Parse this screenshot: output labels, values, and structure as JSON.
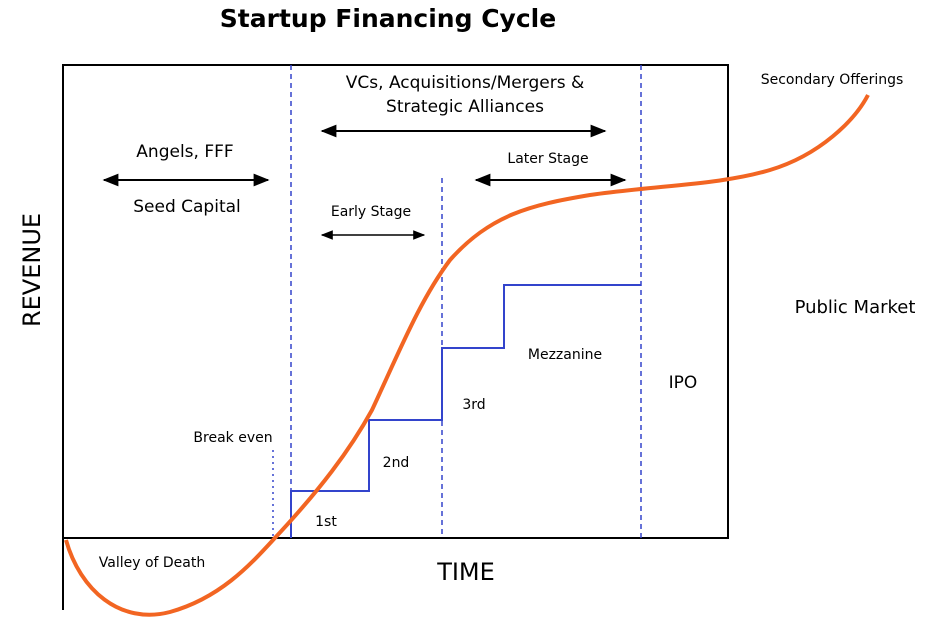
{
  "title": "Startup Financing Cycle",
  "axes": {
    "y_label": "REVENUE",
    "x_label": "TIME"
  },
  "phases": {
    "vc_line1": "VCs, Acquisitions/Mergers &",
    "vc_line2": "Strategic Alliances",
    "angels": "Angels, FFF",
    "seed": "Seed Capital",
    "early": "Early Stage",
    "later": "Later Stage",
    "secondary": "Secondary Offerings",
    "public": "Public Market"
  },
  "labels": {
    "break_even": "Break even",
    "valley": "Valley of Death",
    "first": "1st",
    "second": "2nd",
    "third": "3rd",
    "mezzanine": "Mezzanine",
    "ipo": "IPO"
  }
}
